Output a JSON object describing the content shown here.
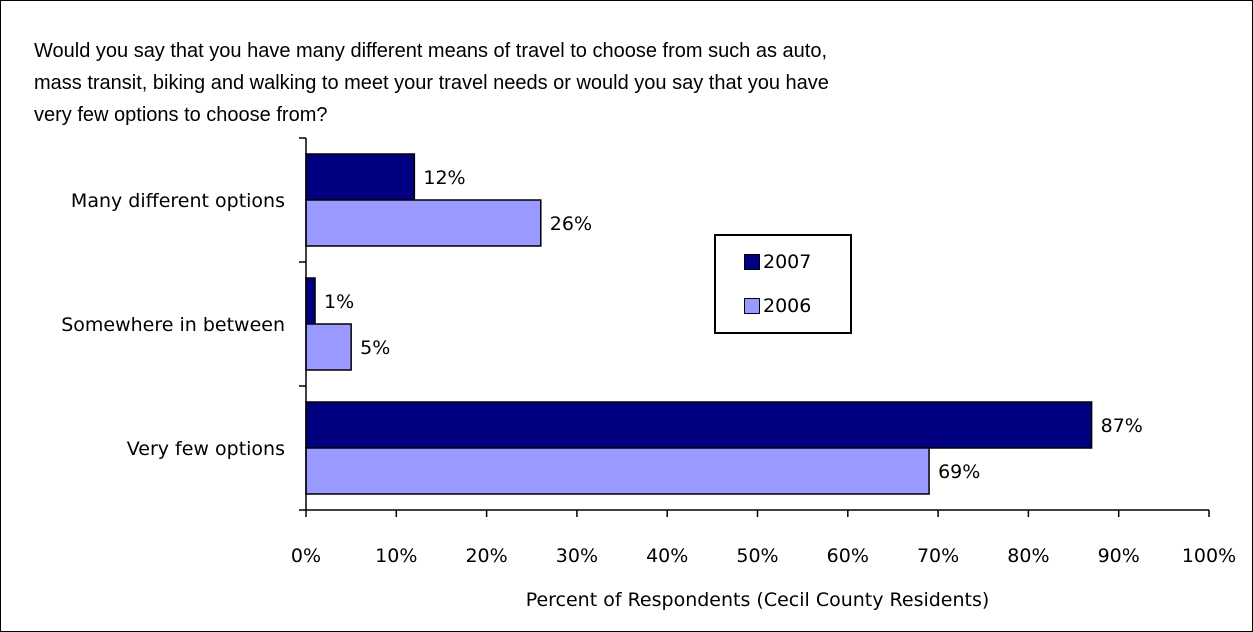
{
  "chart_data": {
    "type": "bar",
    "orientation": "horizontal",
    "title": "Would you say that you have many different means of travel to choose from such as auto,\nmass transit, biking and walking to meet your travel needs or would you say that you have\nvery few options to choose from?",
    "categories": [
      "Many different options",
      "Somewhere in between",
      "Very few options"
    ],
    "series": [
      {
        "name": "2007",
        "values": [
          12,
          1,
          87
        ],
        "color": "#000080"
      },
      {
        "name": "2006",
        "values": [
          26,
          5,
          69
        ],
        "color": "#9999ff"
      }
    ],
    "xlabel": "Percent of Respondents (Cecil County Residents)",
    "xlim": [
      0,
      100
    ],
    "xticks": [
      "0%",
      "10%",
      "20%",
      "30%",
      "40%",
      "50%",
      "60%",
      "70%",
      "80%",
      "90%",
      "100%"
    ],
    "value_suffix": "%",
    "grid": false,
    "legend_position": "center-right"
  }
}
